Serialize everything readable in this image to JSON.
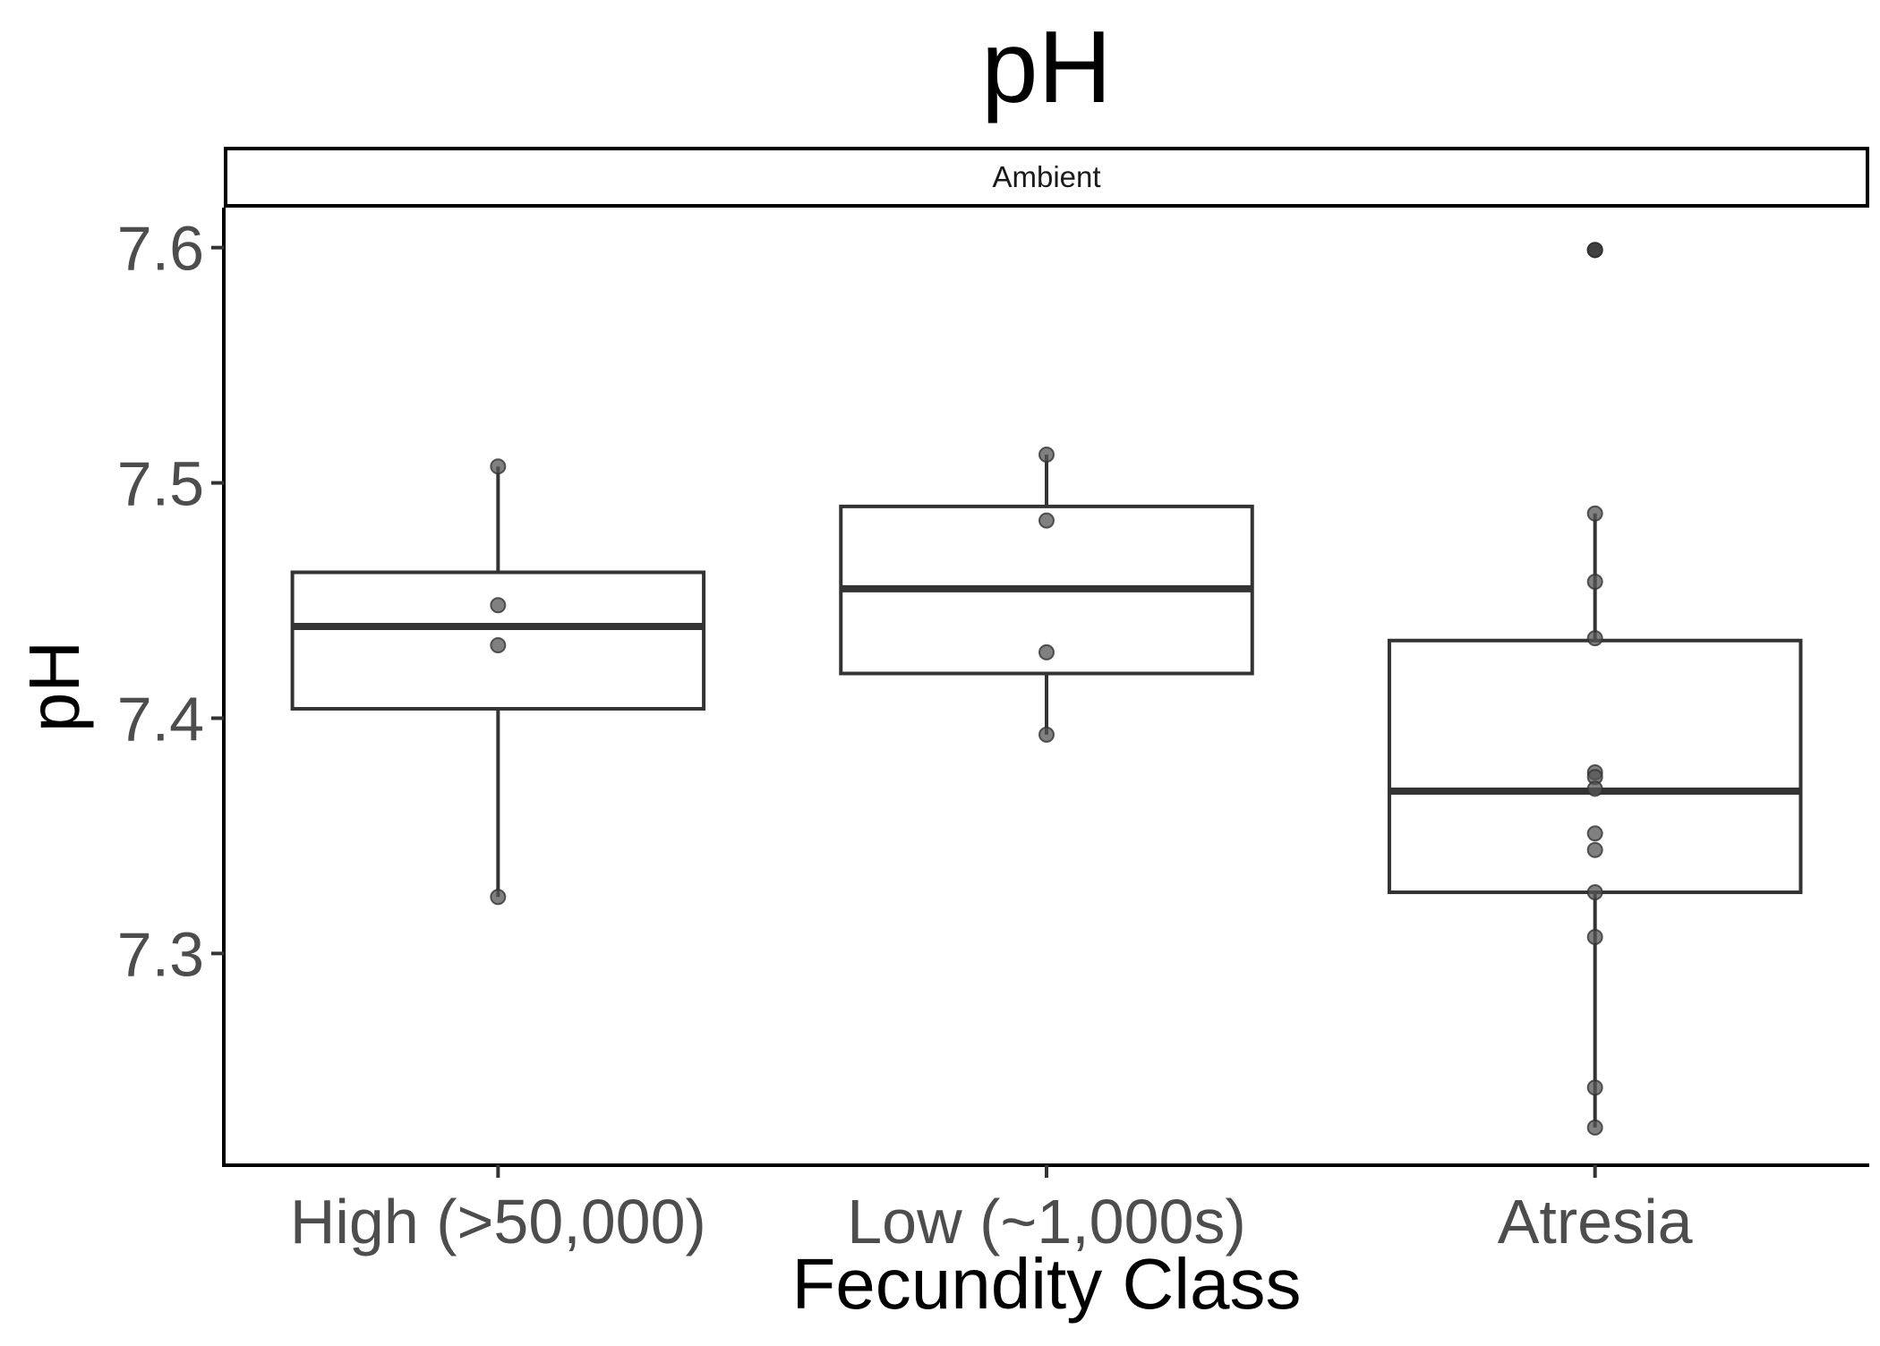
{
  "chart_data": {
    "type": "box",
    "title": "pH",
    "facet": "Ambient",
    "xlabel": "Fecundity Class",
    "ylabel": "pH",
    "ylim": [
      7.21,
      7.617
    ],
    "yticks": [
      "7.3",
      "7.4",
      "7.5",
      "7.6"
    ],
    "categories": [
      "High (>50,000)",
      "Low (~1,000s)",
      "Atresia"
    ],
    "boxes": [
      {
        "category": "High (>50,000)",
        "whisker_low": 7.324,
        "q1": 7.404,
        "median": 7.439,
        "q3": 7.462,
        "whisker_high": 7.507,
        "outliers": [],
        "points": [
          7.507,
          7.448,
          7.431,
          7.324
        ]
      },
      {
        "category": "Low (~1,000s)",
        "whisker_low": 7.393,
        "q1": 7.419,
        "median": 7.455,
        "q3": 7.49,
        "whisker_high": 7.512,
        "outliers": [],
        "points": [
          7.512,
          7.484,
          7.428,
          7.393
        ]
      },
      {
        "category": "Atresia",
        "whisker_low": 7.226,
        "q1": 7.326,
        "median": 7.369,
        "q3": 7.433,
        "whisker_high": 7.487,
        "outliers": [
          7.599
        ],
        "points": [
          7.599,
          7.487,
          7.458,
          7.434,
          7.377,
          7.375,
          7.37,
          7.351,
          7.344,
          7.326,
          7.307,
          7.243,
          7.226
        ]
      }
    ],
    "colors": {
      "box_stroke": "#333333",
      "point_fill": "#555555",
      "outlier": "#000000",
      "tick_label": "#4d4d4d",
      "background": "#ffffff"
    },
    "grid": false,
    "legend": "none"
  }
}
